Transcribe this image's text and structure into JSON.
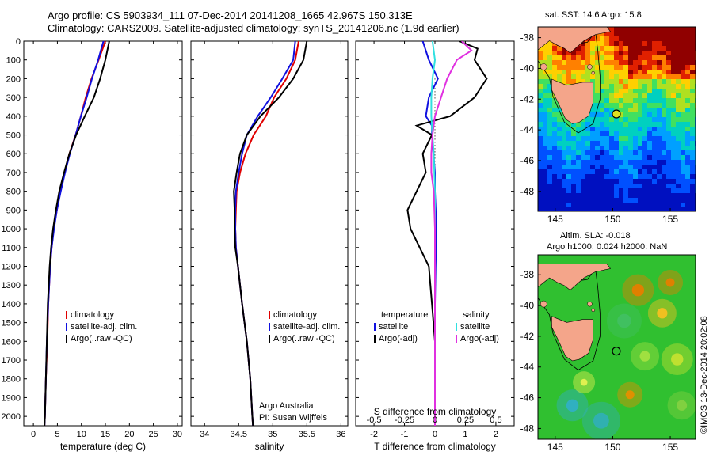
{
  "header": {
    "title_line1": "Argo profile: CS 5903934_111 07-Dec-2014 20141208_1665 42.967S 150.313E",
    "title_line2": "Climatology: CARS2009. Satellite-adjusted climatology: synTS_20141206.nc (1.9d earlier)"
  },
  "credits": {
    "org": "Argo Australia",
    "pi": "PI: Susan Wijffels",
    "imos": "©IMOS 13-Dec-2014 20:02:08"
  },
  "map_top": {
    "title": "sat. SST: 14.6 Argo: 15.8"
  },
  "map_bottom": {
    "title_line1": "Altim. SLA: -0.018",
    "title_line2": "Argo h1000: 0.024 h2000: NaN"
  },
  "colors": {
    "climatology": "#e00000",
    "satellite": "#1010e0",
    "argo": "#000000",
    "sal_satellite": "#30e0e0",
    "sal_argo": "#e030e0",
    "land": "#f4a58a"
  },
  "chart_data": [
    {
      "type": "line",
      "xlabel": "temperature (deg C)",
      "ylabel": "",
      "xlim": [
        -2,
        31
      ],
      "ylim": [
        2050,
        0
      ],
      "xticks": [
        "0",
        "5",
        "10",
        "15",
        "20",
        "25",
        "30"
      ],
      "yticks": [
        "0",
        "100",
        "200",
        "300",
        "400",
        "500",
        "600",
        "700",
        "800",
        "900",
        "1000",
        "1100",
        "1200",
        "1300",
        "1400",
        "1500",
        "1600",
        "1700",
        "1800",
        "1900",
        "2000"
      ],
      "legend": [
        "climatology",
        "satellite-adj. clim.",
        "Argo(..raw -QC)"
      ],
      "series": [
        {
          "name": "climatology",
          "depth": [
            0,
            100,
            200,
            300,
            400,
            500,
            600,
            700,
            800,
            900,
            1000,
            1100,
            1200,
            1400,
            1600,
            1800,
            2000,
            2050
          ],
          "values": [
            15,
            13.6,
            12.1,
            10.9,
            9.9,
            8.8,
            7.5,
            6.5,
            5.6,
            4.9,
            4.2,
            3.8,
            3.5,
            3.1,
            2.9,
            2.6,
            2.4,
            2.3
          ]
        },
        {
          "name": "satellite-adj. clim.",
          "depth": [
            0,
            100,
            200,
            300,
            400,
            500,
            600,
            700,
            800,
            900,
            1000,
            1100,
            1200,
            1400,
            1600,
            1800,
            2000,
            2050
          ],
          "values": [
            14.6,
            13.5,
            12.2,
            11.1,
            9.9,
            8.8,
            7.6,
            6.6,
            5.7,
            4.9,
            4.3,
            3.8,
            3.5,
            3.1,
            2.8,
            2.6,
            2.4,
            2.3
          ]
        },
        {
          "name": "Argo(..raw -QC)",
          "depth": [
            0,
            100,
            200,
            300,
            400,
            500,
            600,
            700,
            800,
            900,
            1000,
            1100,
            1200,
            1400,
            1600,
            1800,
            2000,
            2050
          ],
          "values": [
            15.8,
            15,
            13.9,
            12.6,
            10.7,
            8.9,
            7.5,
            6.4,
            5.4,
            4.7,
            4.1,
            3.7,
            3.4,
            3.0,
            2.8,
            2.6,
            2.4,
            2.3
          ]
        }
      ]
    },
    {
      "type": "line",
      "xlabel": "salinity",
      "xlim": [
        33.8,
        36.1
      ],
      "ylim": [
        2050,
        0
      ],
      "xticks": [
        "34",
        "34.5",
        "35",
        "35.5",
        "36"
      ],
      "legend": [
        "climatology",
        "satellite-adj. clim.",
        "Argo(..raw -QC)"
      ],
      "series": [
        {
          "name": "climatology",
          "depth": [
            0,
            100,
            200,
            300,
            400,
            500,
            600,
            700,
            800,
            900,
            1000,
            1100,
            1200,
            1400,
            1600,
            1800,
            2000,
            2050
          ],
          "values": [
            35.38,
            35.33,
            35.2,
            35.02,
            34.9,
            34.72,
            34.6,
            34.52,
            34.47,
            34.46,
            34.45,
            34.46,
            34.49,
            34.55,
            34.62,
            34.67,
            34.7,
            34.71
          ]
        },
        {
          "name": "satellite-adj. clim.",
          "depth": [
            0,
            100,
            200,
            300,
            400,
            500,
            600,
            700,
            800,
            900,
            1000,
            1100,
            1200,
            1400,
            1600,
            1800,
            2000,
            2050
          ],
          "values": [
            35.33,
            35.3,
            35.14,
            34.97,
            34.78,
            34.62,
            34.55,
            34.5,
            34.46,
            34.45,
            34.45,
            34.46,
            34.49,
            34.55,
            34.62,
            34.67,
            34.7,
            34.71
          ]
        },
        {
          "name": "Argo(..raw -QC)",
          "depth": [
            0,
            100,
            200,
            300,
            400,
            500,
            600,
            700,
            800,
            900,
            1000,
            1100,
            1200,
            1400,
            1600,
            1800,
            2000,
            2050
          ],
          "values": [
            35.5,
            35.45,
            35.3,
            35.09,
            34.82,
            34.62,
            34.52,
            34.47,
            34.43,
            34.44,
            34.44,
            34.45,
            34.49,
            34.55,
            34.62,
            34.67,
            34.7,
            34.71
          ]
        }
      ]
    },
    {
      "type": "line",
      "xlabel": "T difference from climatology",
      "xlabel_top": "S difference from climatology",
      "xlim": [
        -2.6,
        2.6
      ],
      "ylim": [
        2050,
        0
      ],
      "xticks": [
        "-2",
        "-1",
        "0",
        "1",
        "2"
      ],
      "xticks_top": [
        "-0.5",
        "-0.25",
        "0",
        "0.25",
        "0.5"
      ],
      "legend_title_left": "temperature",
      "legend_title_right": "salinity",
      "legend_left": [
        "satellite",
        "Argo(-adj)"
      ],
      "legend_right": [
        "satellite",
        "Argo(-adj)"
      ],
      "series": [
        {
          "name": "temperature satellite",
          "depth": [
            0,
            100,
            200,
            300,
            400,
            450,
            500,
            600,
            700,
            800,
            1000,
            1200,
            1400,
            1600,
            1800,
            2000,
            2050
          ],
          "values": [
            -0.4,
            -0.2,
            0.1,
            -0.2,
            -0.3,
            -0.1,
            -0.1,
            -0.05,
            0,
            0,
            0.05,
            0.02,
            0,
            0,
            0,
            0,
            0
          ]
        },
        {
          "name": "temperature Argo(-adj)",
          "depth": [
            0,
            40,
            100,
            200,
            300,
            400,
            450,
            500,
            600,
            700,
            800,
            900,
            1000,
            1200,
            1400,
            1600,
            1800,
            2000,
            2050
          ],
          "values": [
            0.8,
            1.4,
            1.3,
            1.7,
            1.3,
            0.5,
            -0.6,
            -0.1,
            -0.4,
            -0.3,
            -0.6,
            -0.9,
            -0.8,
            -0.2,
            -0.1,
            0,
            0,
            0,
            0
          ]
        },
        {
          "name": "salinity satellite",
          "depth": [
            0,
            100,
            200,
            300,
            400,
            500,
            600,
            800,
            1000,
            1200,
            1400,
            1600,
            1800,
            2000,
            2050
          ],
          "values": [
            -0.02,
            0,
            -0.02,
            -0.03,
            -0.03,
            -0.02,
            -0.01,
            0,
            0,
            0,
            0,
            0,
            0,
            0,
            0
          ]
        },
        {
          "name": "salinity Argo(-adj)",
          "depth": [
            0,
            50,
            100,
            200,
            300,
            400,
            500,
            600,
            700,
            800,
            1000,
            1200,
            1400,
            1600,
            1800,
            2000,
            2050
          ],
          "values": [
            0.22,
            0.3,
            0.18,
            0.1,
            0.05,
            0,
            -0.02,
            -0.03,
            -0.03,
            -0.01,
            0,
            0,
            0,
            0,
            0,
            0,
            0
          ]
        }
      ]
    },
    {
      "type": "heatmap",
      "title": "sat. SST: 14.6 Argo: 15.8",
      "xlim": [
        143.5,
        157.2
      ],
      "ylim": [
        -49.3,
        -37.3
      ],
      "xticks": [
        "145",
        "150",
        "155"
      ],
      "yticks": [
        "-38",
        "-40",
        "-42",
        "-44",
        "-46",
        "-48"
      ],
      "float_marker": {
        "lon": 150.313,
        "lat": -42.967
      }
    },
    {
      "type": "heatmap",
      "title": "Altim. SLA: -0.018",
      "xlim": [
        143.5,
        157.2
      ],
      "ylim": [
        -48.7,
        -36.7
      ],
      "xticks": [
        "145",
        "150",
        "155"
      ],
      "yticks": [
        "-38",
        "-40",
        "-42",
        "-44",
        "-46",
        "-48"
      ],
      "float_marker": {
        "lon": 150.313,
        "lat": -42.967
      }
    }
  ]
}
